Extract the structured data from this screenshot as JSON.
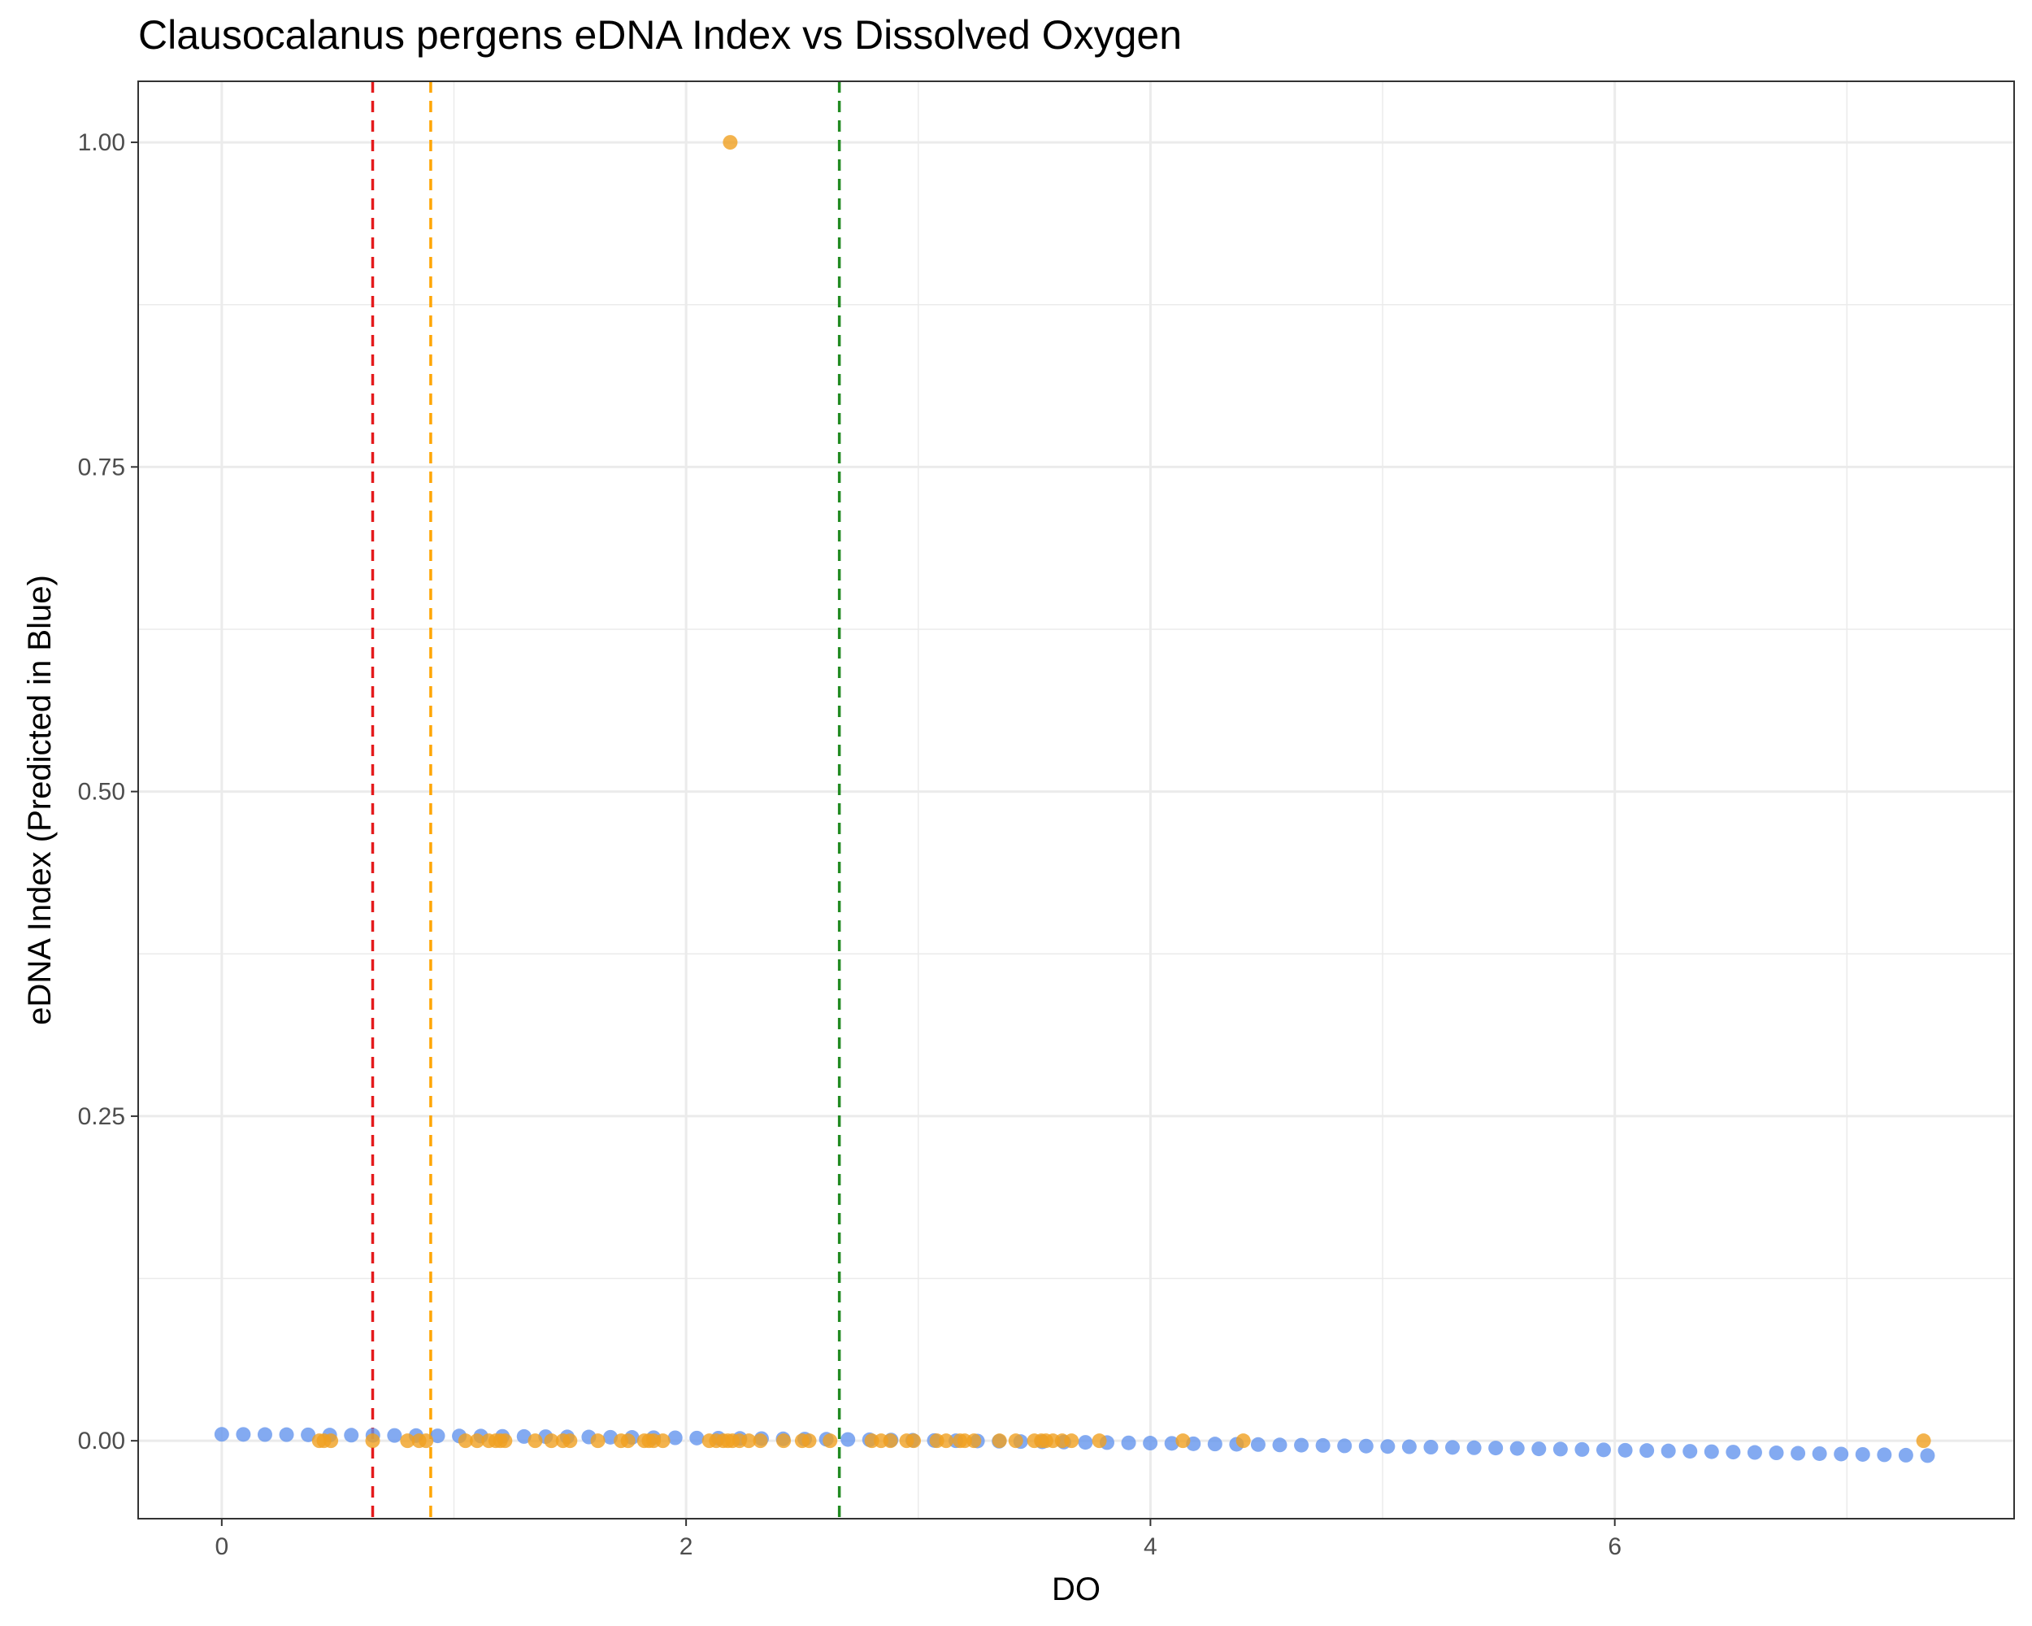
{
  "chart_data": {
    "type": "scatter",
    "title": "Clausocalanus pergens eDNA Index vs Dissolved Oxygen",
    "xlabel": "DO",
    "ylabel": "eDNA Index (Predicted in Blue)",
    "xlim": [
      -0.36,
      7.72
    ],
    "ylim": [
      -0.06,
      1.047
    ],
    "x_ticks": [
      0,
      2,
      4,
      6
    ],
    "x_tick_labels": [
      "0",
      "2",
      "4",
      "6"
    ],
    "y_ticks": [
      0.0,
      0.25,
      0.5,
      0.75,
      1.0
    ],
    "y_tick_labels": [
      "0.00",
      "0.25",
      "0.50",
      "0.75",
      "1.00"
    ],
    "grid": true,
    "colors": {
      "predicted": "#6495ED",
      "observed": "#F0A020",
      "line_red": "#E41A1C",
      "line_orange": "#FFA500",
      "line_green": "#228B22",
      "grid": "#EBEBEB",
      "panel_border": "#333333"
    },
    "vlines": [
      {
        "x": 0.65,
        "color": "#E41A1C"
      },
      {
        "x": 0.9,
        "color": "#FFA500"
      },
      {
        "x": 2.66,
        "color": "#228B22"
      }
    ],
    "series": [
      {
        "color": "#6495ED",
        "x": [
          0.0,
          0.093,
          0.186,
          0.279,
          0.372,
          0.465,
          0.558,
          0.651,
          0.744,
          0.837,
          0.93,
          1.023,
          1.116,
          1.209,
          1.302,
          1.395,
          1.488,
          1.581,
          1.674,
          1.767,
          1.86,
          1.953,
          2.046,
          2.139,
          2.232,
          2.325,
          2.418,
          2.511,
          2.604,
          2.697,
          2.79,
          2.883,
          2.976,
          3.069,
          3.162,
          3.255,
          3.348,
          3.441,
          3.534,
          3.627,
          3.72,
          3.813,
          3.906,
          3.999,
          4.092,
          4.185,
          4.278,
          4.371,
          4.464,
          4.557,
          4.65,
          4.743,
          4.836,
          4.929,
          5.022,
          5.115,
          5.208,
          5.301,
          5.394,
          5.487,
          5.58,
          5.673,
          5.766,
          5.859,
          5.952,
          6.045,
          6.138,
          6.231,
          6.324,
          6.417,
          6.51,
          6.603,
          6.696,
          6.789,
          6.882,
          6.975,
          7.068,
          7.161,
          7.254,
          7.347
        ],
        "y": [
          0.005,
          0.0049,
          0.0048,
          0.0047,
          0.0046,
          0.0044,
          0.0043,
          0.0042,
          0.0041,
          0.004,
          0.0038,
          0.0037,
          0.0036,
          0.0034,
          0.0033,
          0.0032,
          0.003,
          0.0029,
          0.0027,
          0.0026,
          0.0024,
          0.0023,
          0.0021,
          0.002,
          0.0018,
          0.0017,
          0.0015,
          0.0013,
          0.0012,
          0.001,
          0.0008,
          0.0006,
          0.0004,
          0.0002,
          0.0,
          -0.0002,
          -0.0004,
          -0.0006,
          -0.0008,
          -0.001,
          -0.0012,
          -0.0014,
          -0.0016,
          -0.0018,
          -0.002,
          -0.0023,
          -0.0025,
          -0.0027,
          -0.0029,
          -0.0032,
          -0.0034,
          -0.0036,
          -0.0039,
          -0.0041,
          -0.0044,
          -0.0046,
          -0.0049,
          -0.0051,
          -0.0054,
          -0.0056,
          -0.0059,
          -0.0062,
          -0.0064,
          -0.0067,
          -0.007,
          -0.0073,
          -0.0075,
          -0.0078,
          -0.0081,
          -0.0084,
          -0.0087,
          -0.009,
          -0.0093,
          -0.0096,
          -0.0099,
          -0.0102,
          -0.0105,
          -0.0108,
          -0.0111,
          -0.0114
        ]
      },
      {
        "color": "#F0A020",
        "x": [
          0.42,
          0.44,
          0.47,
          0.65,
          0.8,
          0.85,
          0.88,
          1.05,
          1.1,
          1.15,
          1.18,
          1.2,
          1.22,
          1.35,
          1.42,
          1.47,
          1.5,
          1.62,
          1.72,
          1.75,
          1.82,
          1.84,
          1.86,
          1.9,
          2.1,
          2.13,
          2.16,
          2.18,
          2.2,
          2.23,
          2.27,
          2.32,
          2.42,
          2.5,
          2.53,
          2.62,
          2.8,
          2.84,
          2.88,
          2.95,
          2.98,
          3.08,
          3.12,
          3.18,
          3.2,
          3.24,
          3.35,
          3.42,
          3.5,
          3.53,
          3.55,
          3.58,
          3.62,
          3.66,
          3.78,
          4.14,
          4.4,
          7.33,
          2.19
        ],
        "y": [
          0,
          0,
          0,
          0,
          0,
          0,
          0,
          0,
          0,
          0,
          0,
          0,
          0,
          0,
          0,
          0,
          0,
          0,
          0,
          0,
          0,
          0,
          0,
          0,
          0,
          0,
          0,
          0,
          0,
          0,
          0,
          0,
          0,
          0,
          0,
          0,
          0,
          0,
          0,
          0,
          0,
          0,
          0,
          0,
          0,
          0,
          0,
          0,
          0,
          0,
          0,
          0,
          0,
          0,
          0,
          0,
          0,
          0,
          1.0
        ]
      }
    ]
  }
}
